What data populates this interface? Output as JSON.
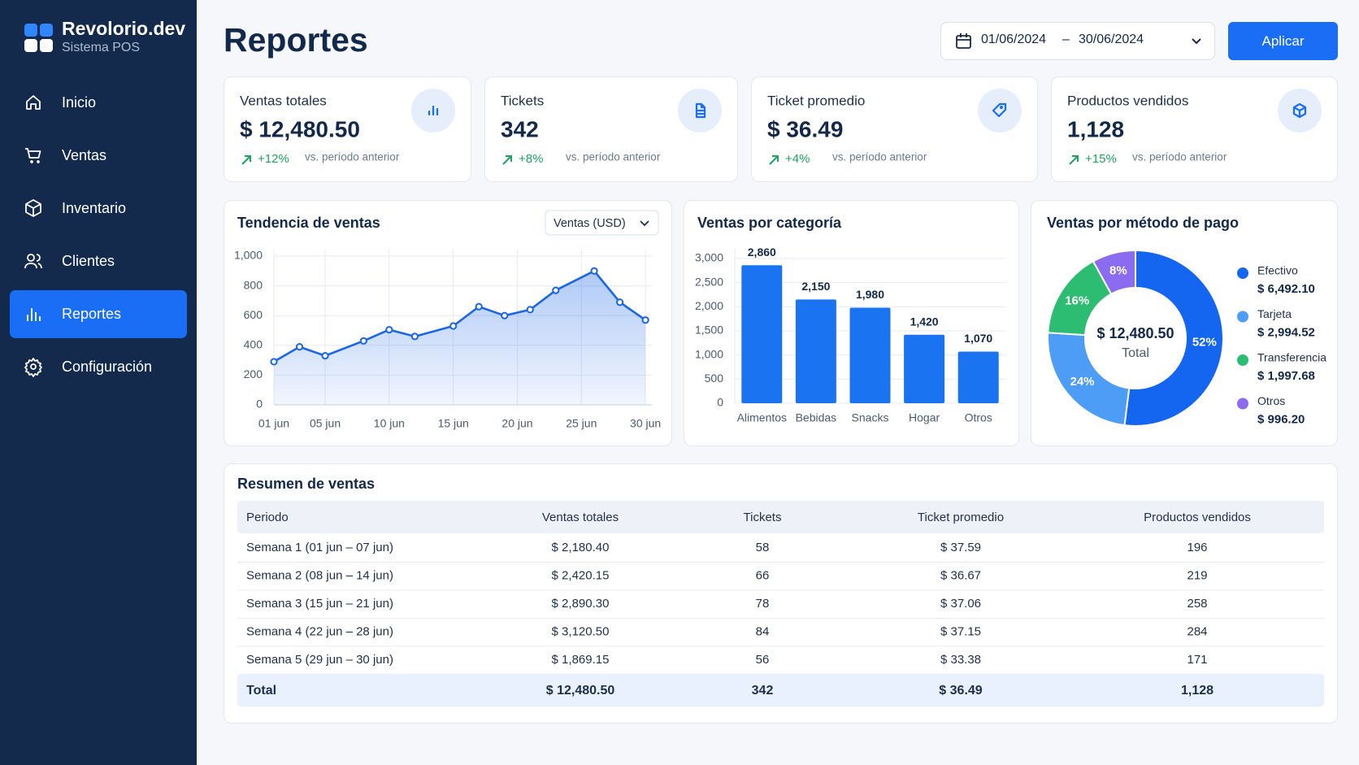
{
  "sidebar": {
    "brand": "Revolorio.dev",
    "subtitle": "Sistema POS",
    "nav": [
      "Inicio",
      "Ventas",
      "Inventario",
      "Clientes",
      "Reportes",
      "Configuración"
    ],
    "active": 4
  },
  "header": {
    "title": "Reportes",
    "date_from": "01/06/2024",
    "date_separator": "–",
    "date_to": "30/06/2024",
    "button": "Aplicar"
  },
  "kpis": [
    {
      "label": "Ventas totales",
      "value": "$ 12,480.50",
      "change": "+12%",
      "note": "vs. período anterior"
    },
    {
      "label": "Tickets",
      "value": "342",
      "change": "+8%",
      "note": "vs. período anterior"
    },
    {
      "label": "Ticket promedio",
      "value": "$ 36.49",
      "change": "+4%",
      "note": "vs. período anterior"
    },
    {
      "label": "Productos vendidos",
      "value": "1,128",
      "change": "+15%",
      "note": "vs. período anterior"
    }
  ],
  "chart_data": [
    {
      "type": "line",
      "title": "Tendencia de ventas",
      "selector": "Ventas (USD)",
      "x": [
        1,
        3,
        5,
        8,
        10,
        12,
        15,
        17,
        19,
        21,
        23,
        26,
        28,
        30
      ],
      "values": [
        290,
        390,
        330,
        430,
        505,
        460,
        530,
        660,
        600,
        640,
        770,
        900,
        690,
        570
      ],
      "color": "#1a66e8",
      "xlim": [
        1,
        30.5
      ],
      "xticks": [
        {
          "value": 1,
          "label": "01 jun"
        },
        {
          "value": 5,
          "label": "05 jun"
        },
        {
          "value": 10,
          "label": "10 jun"
        },
        {
          "value": 15,
          "label": "15 jun"
        },
        {
          "value": 20,
          "label": "20 jun"
        },
        {
          "value": 25,
          "label": "25 jun"
        },
        {
          "value": 30,
          "label": "30 jun"
        }
      ],
      "ylim": [
        0,
        1000
      ],
      "yticks": [
        0,
        200,
        400,
        600,
        800,
        {
          "value": 1000,
          "label": "1,000"
        }
      ],
      "grid": true
    },
    {
      "type": "bar",
      "title": "Ventas por categoría",
      "categories": [
        "Alimentos",
        "Bebidas",
        "Snacks",
        "Hogar",
        "Otros"
      ],
      "values": [
        2860,
        2150,
        1980,
        1420,
        1070
      ],
      "value_labels": [
        "2,860",
        "2,150",
        "1,980",
        "1,420",
        "1,070"
      ],
      "color": "#1a73f0",
      "ylim": [
        0,
        3000
      ],
      "yticks": [
        0,
        500,
        {
          "value": 1000,
          "label": "1,000"
        },
        {
          "value": 1500,
          "label": "1,500"
        },
        {
          "value": 2000,
          "label": "2,000"
        },
        {
          "value": 2500,
          "label": "2,500"
        },
        {
          "value": 3000,
          "label": "3,000"
        }
      ],
      "grid": true
    },
    {
      "type": "pie",
      "title": "Ventas por método de pago",
      "categories": [
        "Efectivo",
        "Tarjeta",
        "Transferencia",
        "Otros"
      ],
      "values": [
        52,
        24,
        16,
        8
      ],
      "value_labels": [
        "52%",
        "24%",
        "16%",
        "8%"
      ],
      "amounts": [
        "$ 6,492.10",
        "$ 2,994.52",
        "$ 1,997.68",
        "$ 996.20"
      ],
      "colors": [
        "#1466f0",
        "#4d9cf5",
        "#2dbd72",
        "#8b6cf0"
      ],
      "center_value": "$ 12,480.50",
      "center_label": "Total"
    }
  ],
  "table": {
    "title": "Resumen de ventas",
    "columns": [
      "Periodo",
      "Ventas totales",
      "Tickets",
      "Ticket promedio",
      "Productos vendidos"
    ],
    "rows": [
      [
        "Semana 1 (01 jun – 07 jun)",
        "$ 2,180.40",
        "58",
        "$ 37.59",
        "196"
      ],
      [
        "Semana 2 (08 jun – 14 jun)",
        "$ 2,420.15",
        "66",
        "$ 36.67",
        "219"
      ],
      [
        "Semana 3 (15 jun – 21 jun)",
        "$ 2,890.30",
        "78",
        "$ 37.06",
        "258"
      ],
      [
        "Semana 4 (22 jun – 28 jun)",
        "$ 3,120.50",
        "84",
        "$ 37.15",
        "284"
      ],
      [
        "Semana 5 (29 jun – 30 jun)",
        "$ 1,869.15",
        "56",
        "$ 33.38",
        "171"
      ]
    ],
    "total": [
      "Total",
      "$ 12,480.50",
      "342",
      "$ 36.49",
      "1,128"
    ]
  }
}
